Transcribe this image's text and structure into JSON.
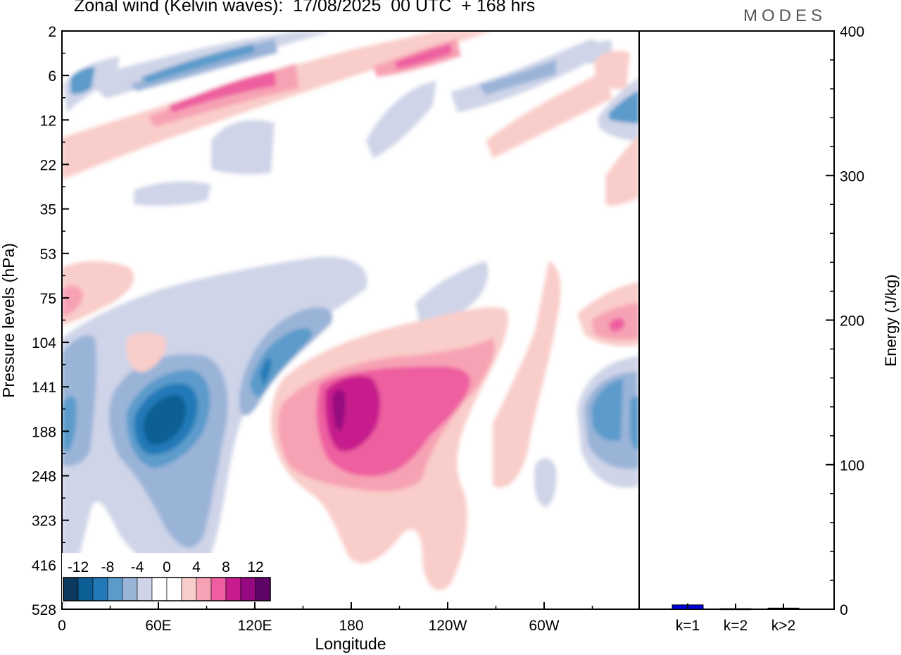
{
  "title": "Zonal wind (Kelvin waves):  17/08/2025  00 UTC  + 168 hrs",
  "brand": "MODES",
  "chart_data": [
    {
      "type": "heatmap",
      "title": "Zonal wind (Kelvin waves):  17/08/2025  00 UTC  + 168 hrs",
      "xlabel": "Longitude",
      "ylabel": "Pressure levels (hPa)",
      "x_tick_labels": [
        "0",
        "60E",
        "120E",
        "180",
        "120W",
        "60W"
      ],
      "y_tick_labels": [
        "2",
        "6",
        "12",
        "22",
        "35",
        "53",
        "75",
        "104",
        "141",
        "188",
        "248",
        "323",
        "416",
        "528"
      ],
      "colorbar": {
        "tick_labels": [
          "-12",
          "-8",
          "-4",
          "0",
          "4",
          "8",
          "12"
        ],
        "colors": [
          "#0b3a5e",
          "#0c5f94",
          "#2379b7",
          "#5b9bcb",
          "#9ab4d8",
          "#cfd4e8",
          "#ffffff",
          "#ffffff",
          "#f9cdc9",
          "#f7a2b4",
          "#ee5ea0",
          "#c71d8c",
          "#96087f",
          "#5e0466"
        ]
      },
      "features": [
        {
          "sign": "positive",
          "peak_level": "max",
          "longitude": "~175",
          "pressure_hPa": "~160"
        },
        {
          "sign": "negative",
          "peak_level": "min",
          "longitude": "~65E",
          "pressure_hPa": "~160"
        },
        {
          "sign": "negative",
          "longitude": "~125E",
          "pressure_hPa": "~130"
        },
        {
          "sign": "positive",
          "longitude": "~80E-120E",
          "pressure_hPa": "~8"
        },
        {
          "sign": "negative",
          "longitude": "~40E-100E",
          "pressure_hPa": "~5"
        }
      ]
    },
    {
      "type": "bar",
      "ylabel": "Energy (J/kg)",
      "ylim": [
        0,
        400
      ],
      "y_tick_labels": [
        "0",
        "100",
        "200",
        "300",
        "400"
      ],
      "categories": [
        "k=1",
        "k=2",
        "k>2"
      ],
      "values": [
        3,
        0.4,
        0.8
      ],
      "bar_colors": [
        "#0000dd",
        "#000000",
        "#000000"
      ]
    }
  ]
}
